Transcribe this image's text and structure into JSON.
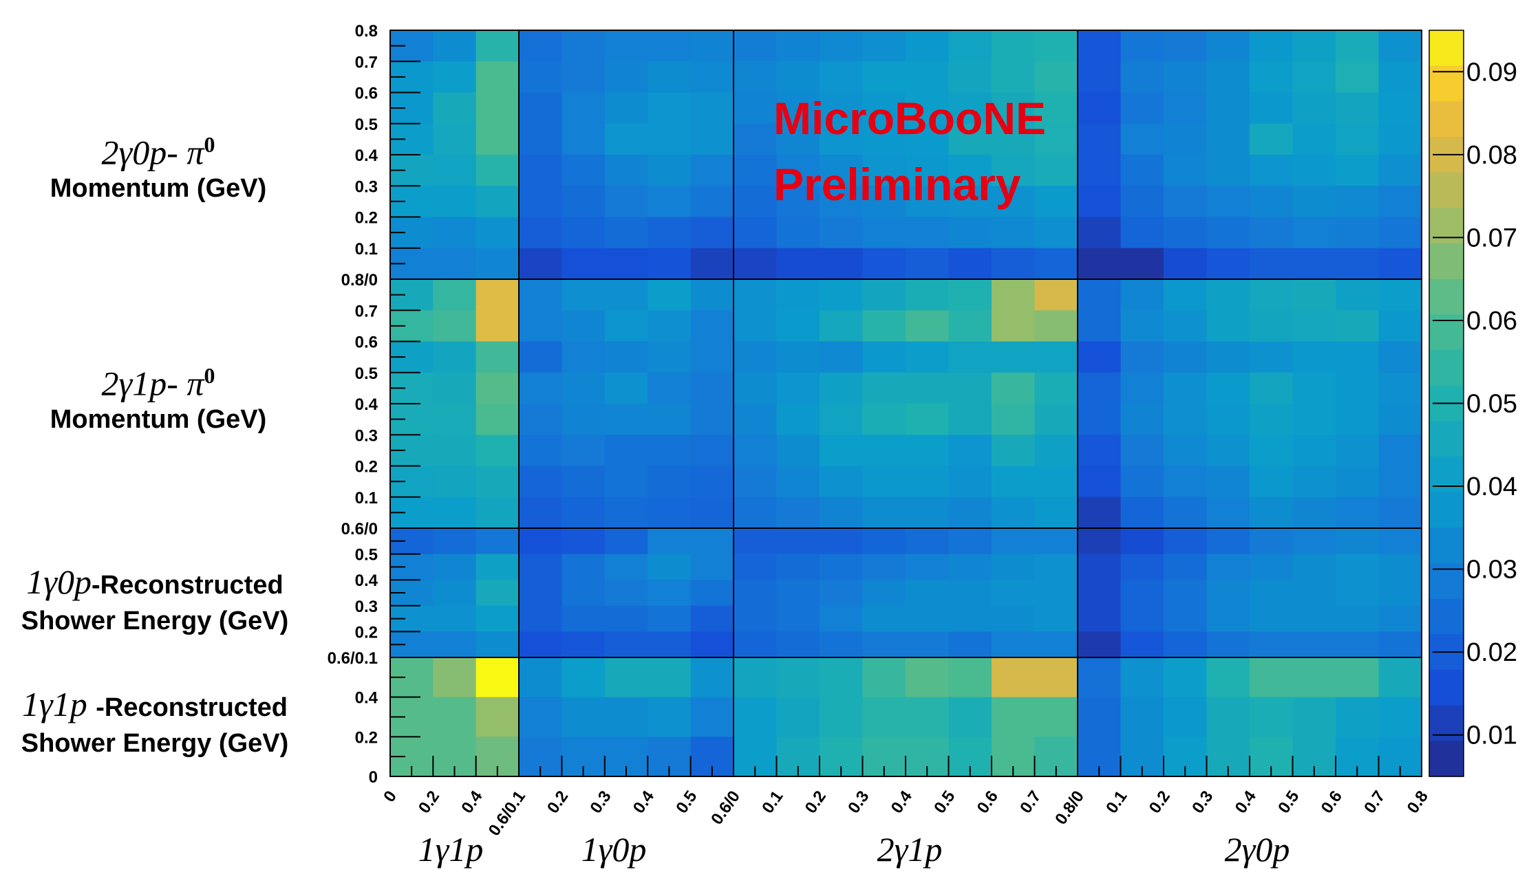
{
  "chart_data": {
    "type": "heatmap",
    "annotation": [
      "MicroBooNE",
      "Preliminary"
    ],
    "x_blocks": [
      {
        "name": "1γ1p",
        "tick_labels": [
          "0",
          "0.2",
          "0.4"
        ],
        "n_bins": 3
      },
      {
        "name": "1γ0p",
        "tick_labels": [
          "0.6/0.1",
          "0.2",
          "0.3",
          "0.4",
          "0.5"
        ],
        "n_bins": 5
      },
      {
        "name": "2γ1p",
        "tick_labels": [
          "0.6/0",
          "0.1",
          "0.2",
          "0.3",
          "0.4",
          "0.5",
          "0.6",
          "0.7"
        ],
        "n_bins": 8
      },
      {
        "name": "2γ0p",
        "tick_labels": [
          "0.8/0",
          "0.1",
          "0.2",
          "0.3",
          "0.4",
          "0.5",
          "0.6",
          "0.7",
          "0.8"
        ],
        "n_bins": 8
      }
    ],
    "y_blocks": [
      {
        "label_math": "2γ0p- π",
        "label_sup": "0",
        "label_text": "Momentum (GeV)",
        "tick_labels": [
          "0.8",
          "0.7",
          "0.6",
          "0.5",
          "0.4",
          "0.3",
          "0.2",
          "0.1",
          "0.8/0"
        ],
        "n_bins": 8
      },
      {
        "label_math": "2γ1p- π",
        "label_sup": "0",
        "label_text": "Momentum (GeV)",
        "tick_labels": [
          "0.7",
          "0.6",
          "0.5",
          "0.4",
          "0.3",
          "0.2",
          "0.1",
          "0.6/0"
        ],
        "n_bins": 8
      },
      {
        "label_math": "1γ0p",
        "label_text_inline": "-Reconstructed",
        "label_text": "Shower Energy (GeV)",
        "tick_labels": [
          "0.5",
          "0.4",
          "0.3",
          "0.2",
          "0.6/0.1"
        ],
        "n_bins": 5
      },
      {
        "label_math": "1γ1p ",
        "label_text_inline": "-Reconstructed",
        "label_text": "Shower Energy (GeV)",
        "tick_labels": [
          "0.4",
          "0.2",
          "0"
        ],
        "n_bins": 3
      }
    ],
    "z_range": [
      0.005,
      0.095
    ],
    "colorbar_labels": [
      "0.09",
      "0.08",
      "0.07",
      "0.06",
      "0.05",
      "0.04",
      "0.03",
      "0.02",
      "0.01"
    ],
    "colorbar_values": [
      0.09,
      0.08,
      0.07,
      0.06,
      0.05,
      0.04,
      0.03,
      0.02,
      0.01
    ],
    "values": [
      [
        0.03,
        0.034,
        0.052,
        0.025,
        0.028,
        0.03,
        0.03,
        0.031,
        0.029,
        0.031,
        0.033,
        0.035,
        0.038,
        0.043,
        0.048,
        0.05,
        0.018,
        0.027,
        0.028,
        0.032,
        0.038,
        0.042,
        0.047,
        0.036
      ],
      [
        0.038,
        0.04,
        0.06,
        0.026,
        0.028,
        0.031,
        0.034,
        0.033,
        0.032,
        0.034,
        0.037,
        0.04,
        0.04,
        0.044,
        0.048,
        0.052,
        0.018,
        0.029,
        0.031,
        0.034,
        0.04,
        0.043,
        0.049,
        0.038
      ],
      [
        0.038,
        0.046,
        0.06,
        0.024,
        0.03,
        0.034,
        0.037,
        0.036,
        0.031,
        0.033,
        0.036,
        0.038,
        0.04,
        0.042,
        0.046,
        0.05,
        0.016,
        0.027,
        0.03,
        0.034,
        0.038,
        0.042,
        0.044,
        0.039
      ],
      [
        0.04,
        0.045,
        0.06,
        0.024,
        0.03,
        0.037,
        0.037,
        0.036,
        0.028,
        0.032,
        0.037,
        0.038,
        0.039,
        0.046,
        0.046,
        0.049,
        0.018,
        0.03,
        0.031,
        0.034,
        0.045,
        0.04,
        0.043,
        0.038
      ],
      [
        0.044,
        0.043,
        0.052,
        0.022,
        0.026,
        0.031,
        0.034,
        0.03,
        0.026,
        0.03,
        0.033,
        0.037,
        0.038,
        0.04,
        0.045,
        0.047,
        0.018,
        0.026,
        0.032,
        0.034,
        0.037,
        0.038,
        0.04,
        0.035
      ],
      [
        0.04,
        0.04,
        0.044,
        0.022,
        0.024,
        0.028,
        0.03,
        0.027,
        0.024,
        0.027,
        0.03,
        0.032,
        0.035,
        0.036,
        0.036,
        0.039,
        0.016,
        0.024,
        0.028,
        0.03,
        0.032,
        0.034,
        0.033,
        0.03
      ],
      [
        0.034,
        0.033,
        0.036,
        0.02,
        0.022,
        0.024,
        0.022,
        0.02,
        0.022,
        0.026,
        0.028,
        0.03,
        0.03,
        0.032,
        0.033,
        0.035,
        0.012,
        0.022,
        0.024,
        0.026,
        0.028,
        0.03,
        0.029,
        0.027
      ],
      [
        0.03,
        0.03,
        0.032,
        0.013,
        0.016,
        0.016,
        0.017,
        0.012,
        0.013,
        0.015,
        0.015,
        0.018,
        0.02,
        0.017,
        0.02,
        0.022,
        0.008,
        0.008,
        0.015,
        0.018,
        0.02,
        0.02,
        0.02,
        0.018
      ],
      [
        0.046,
        0.055,
        0.082,
        0.03,
        0.035,
        0.035,
        0.04,
        0.034,
        0.036,
        0.038,
        0.04,
        0.044,
        0.048,
        0.05,
        0.07,
        0.08,
        0.024,
        0.032,
        0.038,
        0.042,
        0.045,
        0.046,
        0.042,
        0.04
      ],
      [
        0.055,
        0.058,
        0.082,
        0.03,
        0.032,
        0.037,
        0.035,
        0.03,
        0.036,
        0.039,
        0.045,
        0.052,
        0.058,
        0.052,
        0.07,
        0.068,
        0.024,
        0.033,
        0.036,
        0.042,
        0.044,
        0.045,
        0.046,
        0.038
      ],
      [
        0.042,
        0.044,
        0.058,
        0.024,
        0.03,
        0.031,
        0.033,
        0.03,
        0.032,
        0.034,
        0.033,
        0.038,
        0.04,
        0.043,
        0.043,
        0.043,
        0.016,
        0.028,
        0.031,
        0.034,
        0.036,
        0.038,
        0.038,
        0.033
      ],
      [
        0.047,
        0.046,
        0.062,
        0.03,
        0.032,
        0.036,
        0.03,
        0.028,
        0.034,
        0.037,
        0.042,
        0.046,
        0.046,
        0.046,
        0.056,
        0.048,
        0.022,
        0.03,
        0.035,
        0.039,
        0.044,
        0.04,
        0.038,
        0.035
      ],
      [
        0.047,
        0.047,
        0.06,
        0.028,
        0.031,
        0.032,
        0.032,
        0.028,
        0.032,
        0.038,
        0.043,
        0.048,
        0.05,
        0.046,
        0.054,
        0.046,
        0.022,
        0.031,
        0.035,
        0.038,
        0.042,
        0.04,
        0.038,
        0.034
      ],
      [
        0.046,
        0.046,
        0.05,
        0.026,
        0.028,
        0.026,
        0.026,
        0.025,
        0.03,
        0.034,
        0.04,
        0.04,
        0.04,
        0.037,
        0.046,
        0.042,
        0.018,
        0.028,
        0.033,
        0.036,
        0.04,
        0.038,
        0.036,
        0.03
      ],
      [
        0.043,
        0.044,
        0.046,
        0.022,
        0.024,
        0.026,
        0.024,
        0.023,
        0.028,
        0.032,
        0.036,
        0.038,
        0.038,
        0.036,
        0.04,
        0.04,
        0.016,
        0.026,
        0.03,
        0.032,
        0.038,
        0.036,
        0.034,
        0.03
      ],
      [
        0.04,
        0.04,
        0.044,
        0.02,
        0.022,
        0.024,
        0.023,
        0.022,
        0.026,
        0.028,
        0.031,
        0.034,
        0.034,
        0.032,
        0.036,
        0.038,
        0.011,
        0.022,
        0.026,
        0.03,
        0.034,
        0.032,
        0.03,
        0.028
      ],
      [
        0.022,
        0.024,
        0.027,
        0.016,
        0.018,
        0.022,
        0.03,
        0.03,
        0.02,
        0.02,
        0.02,
        0.022,
        0.024,
        0.026,
        0.03,
        0.03,
        0.011,
        0.015,
        0.02,
        0.024,
        0.028,
        0.03,
        0.032,
        0.03
      ],
      [
        0.03,
        0.032,
        0.042,
        0.02,
        0.026,
        0.03,
        0.034,
        0.03,
        0.022,
        0.024,
        0.026,
        0.028,
        0.03,
        0.032,
        0.034,
        0.036,
        0.014,
        0.02,
        0.024,
        0.03,
        0.032,
        0.034,
        0.036,
        0.034
      ],
      [
        0.032,
        0.034,
        0.046,
        0.02,
        0.026,
        0.028,
        0.03,
        0.026,
        0.024,
        0.026,
        0.028,
        0.032,
        0.034,
        0.034,
        0.036,
        0.036,
        0.014,
        0.022,
        0.026,
        0.032,
        0.034,
        0.034,
        0.036,
        0.034
      ],
      [
        0.036,
        0.036,
        0.04,
        0.02,
        0.024,
        0.024,
        0.026,
        0.02,
        0.024,
        0.026,
        0.03,
        0.034,
        0.034,
        0.034,
        0.034,
        0.036,
        0.014,
        0.022,
        0.026,
        0.032,
        0.034,
        0.034,
        0.034,
        0.032
      ],
      [
        0.03,
        0.03,
        0.034,
        0.016,
        0.018,
        0.02,
        0.02,
        0.016,
        0.022,
        0.024,
        0.026,
        0.028,
        0.028,
        0.026,
        0.03,
        0.03,
        0.01,
        0.018,
        0.022,
        0.026,
        0.028,
        0.028,
        0.028,
        0.026
      ],
      [
        0.062,
        0.068,
        0.095,
        0.034,
        0.04,
        0.046,
        0.046,
        0.036,
        0.044,
        0.046,
        0.048,
        0.056,
        0.062,
        0.06,
        0.08,
        0.08,
        0.025,
        0.036,
        0.04,
        0.05,
        0.058,
        0.058,
        0.058,
        0.046
      ],
      [
        0.062,
        0.062,
        0.07,
        0.03,
        0.034,
        0.034,
        0.036,
        0.03,
        0.04,
        0.044,
        0.048,
        0.052,
        0.052,
        0.048,
        0.06,
        0.06,
        0.024,
        0.034,
        0.038,
        0.046,
        0.048,
        0.046,
        0.042,
        0.04
      ],
      [
        0.062,
        0.062,
        0.065,
        0.028,
        0.03,
        0.03,
        0.028,
        0.022,
        0.04,
        0.046,
        0.05,
        0.054,
        0.054,
        0.05,
        0.06,
        0.056,
        0.024,
        0.034,
        0.04,
        0.046,
        0.05,
        0.046,
        0.04,
        0.038
      ]
    ]
  }
}
